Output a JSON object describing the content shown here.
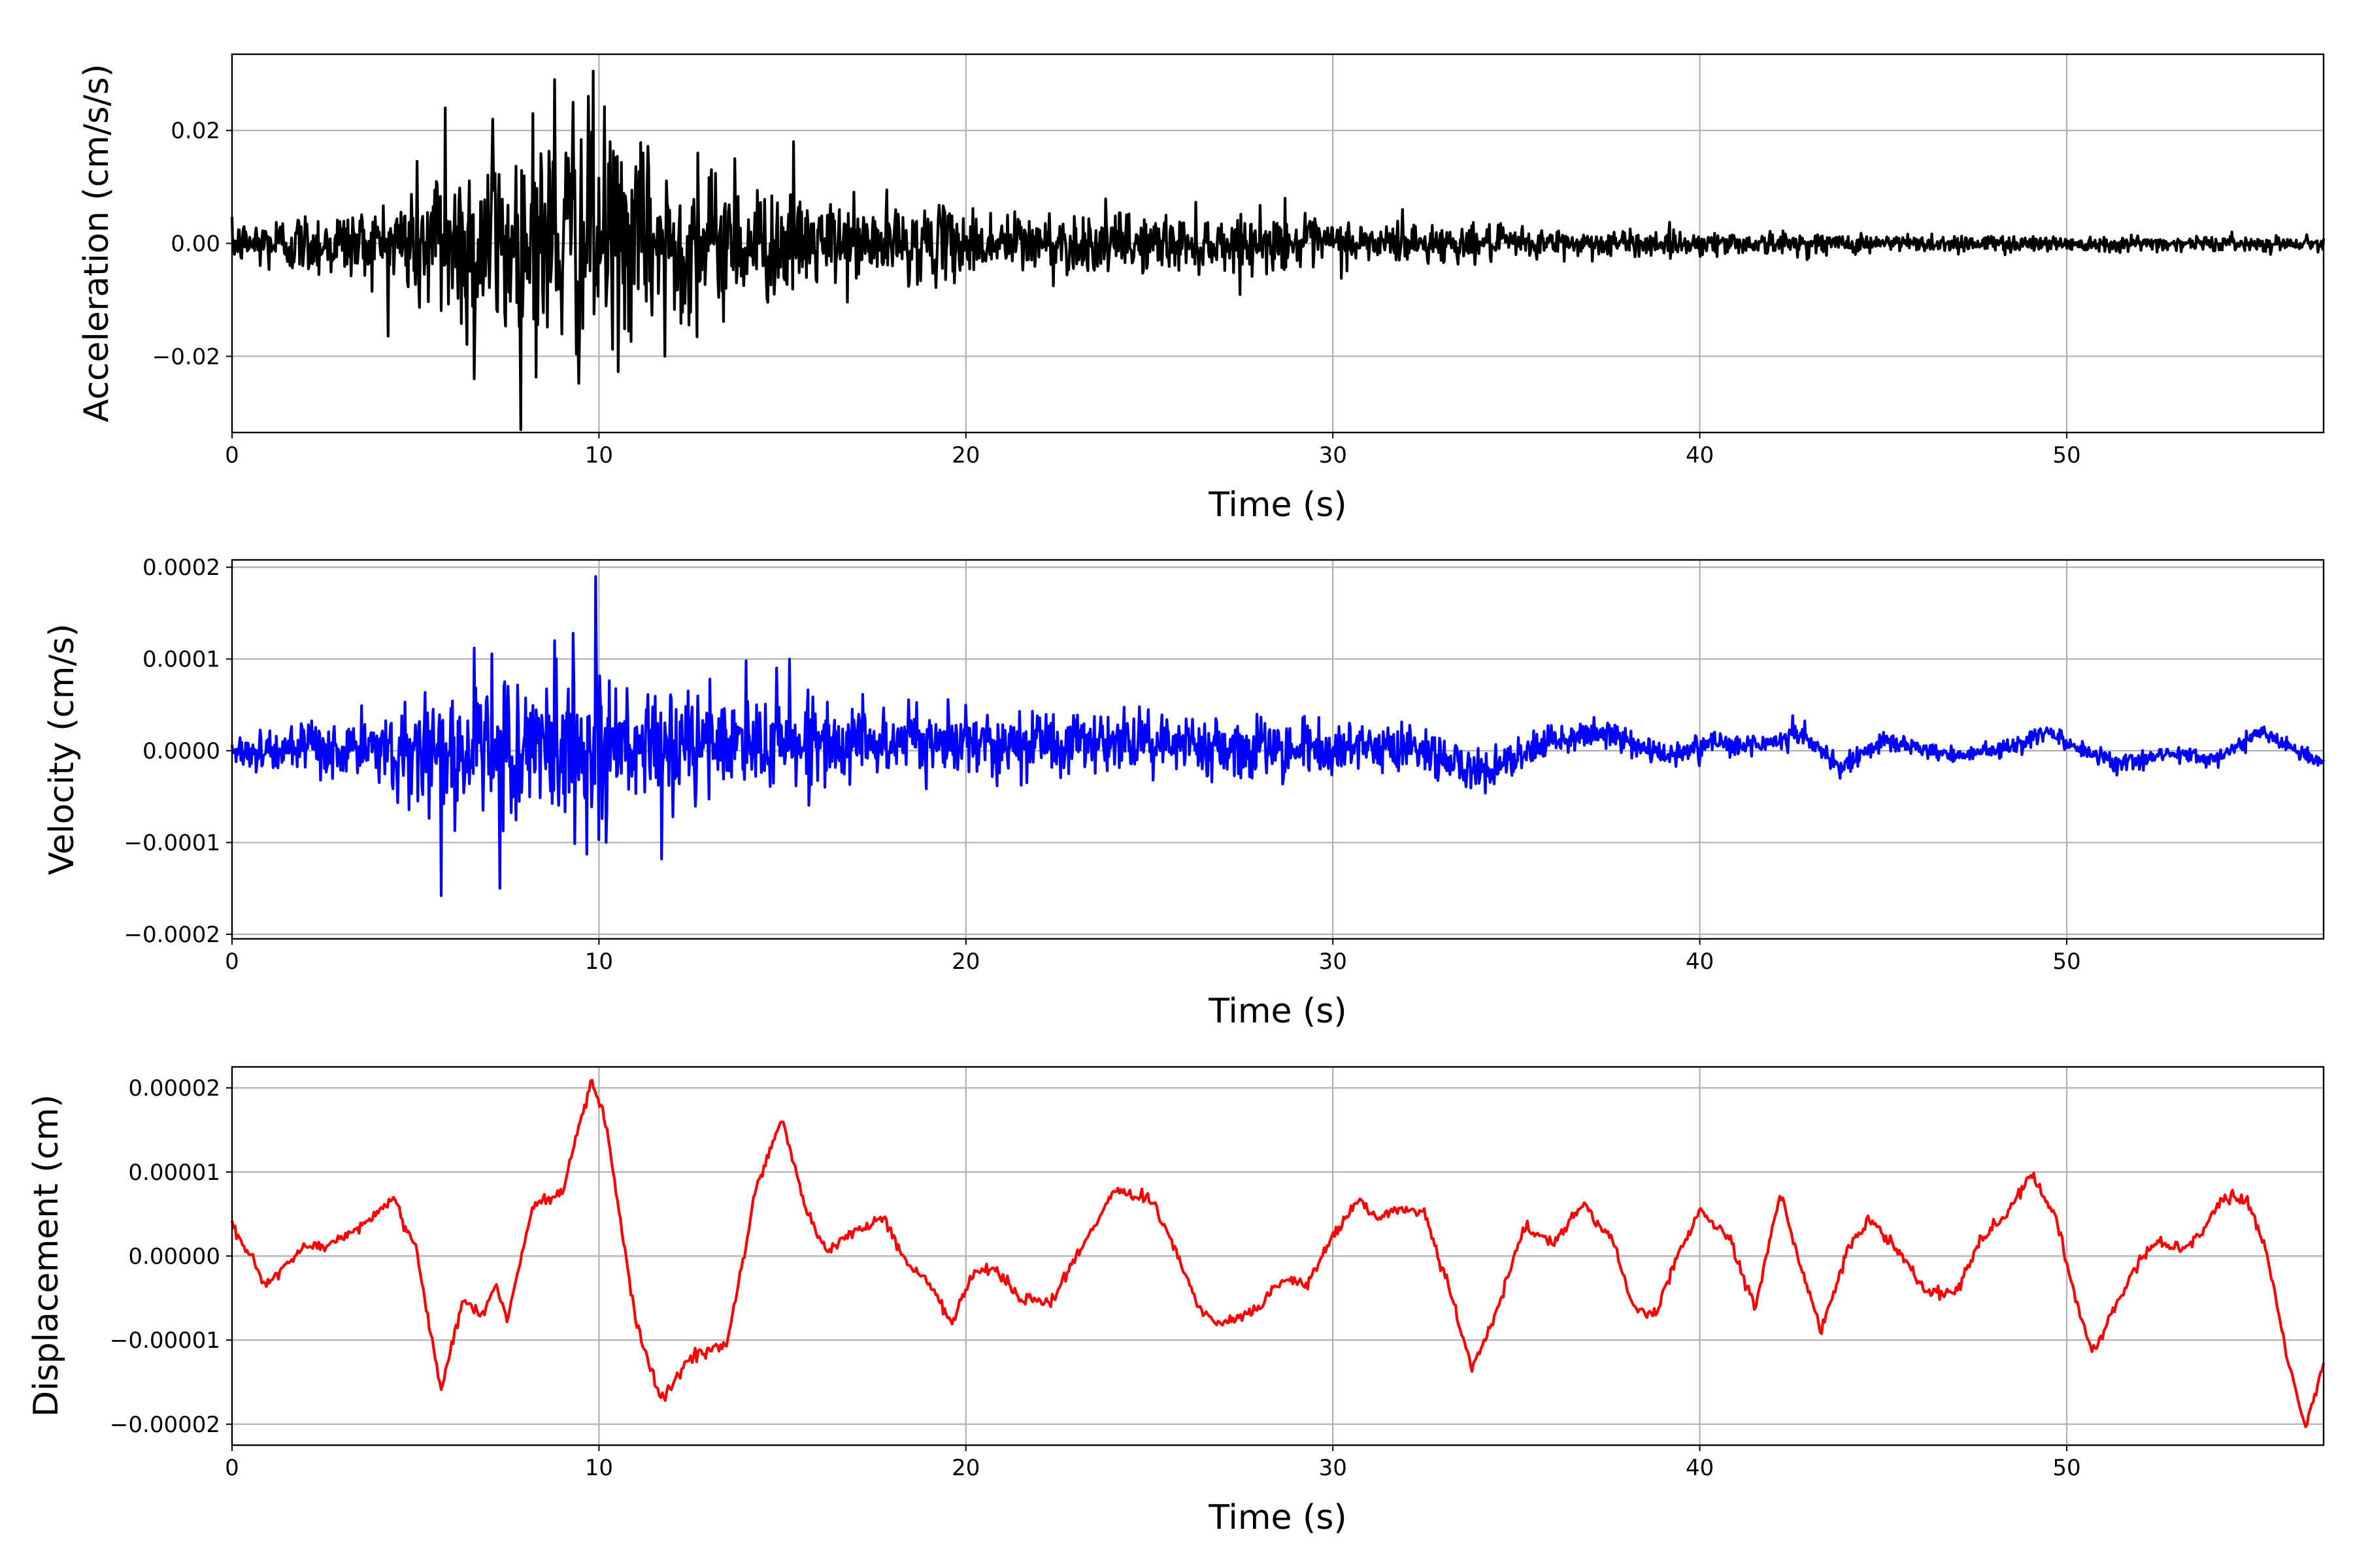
{
  "chart_data": [
    {
      "type": "line",
      "xlabel": "Time (s)",
      "ylabel": "Acceleration (cm/s/s)",
      "xlim": [
        0,
        57
      ],
      "ylim": [
        -0.0335,
        0.0335
      ],
      "xticks": [
        0,
        10,
        20,
        30,
        40,
        50
      ],
      "xtick_labels": [
        "0",
        "10",
        "20",
        "30",
        "40",
        "50"
      ],
      "yticks": [
        -0.02,
        0.0,
        0.02
      ],
      "ytick_labels": [
        "−0.02",
        "0.00",
        "0.02"
      ],
      "grid": true,
      "color": "#000000",
      "signal": "random",
      "envelope": {
        "x": [
          0,
          1,
          4,
          5.5,
          6.5,
          8,
          9,
          10,
          11,
          12.5,
          14,
          16,
          18,
          20,
          25,
          28,
          30,
          32,
          34,
          36,
          40,
          45,
          50,
          57
        ],
        "y": [
          0.004,
          0.006,
          0.008,
          0.018,
          0.02,
          0.022,
          0.025,
          0.026,
          0.018,
          0.016,
          0.013,
          0.009,
          0.008,
          0.007,
          0.006,
          0.0055,
          0.005,
          0.0042,
          0.0036,
          0.003,
          0.0025,
          0.002,
          0.0017,
          0.0014
        ]
      },
      "peaks": {
        "x": [
          5.8,
          6.6,
          7.1,
          8.2,
          8.8,
          9.3,
          9.85,
          10.3,
          11.2,
          11.8,
          12.7,
          13.7,
          15.3,
          28.7,
          31.9
        ],
        "y": [
          0.024,
          -0.024,
          0.022,
          0.023,
          0.029,
          0.025,
          0.0305,
          0.018,
          0.016,
          -0.02,
          0.016,
          0.015,
          0.018,
          0.008,
          0.006
        ]
      }
    },
    {
      "type": "line",
      "xlabel": "Time (s)",
      "ylabel": "Velocity (cm/s)",
      "xlim": [
        0,
        57
      ],
      "ylim": [
        -0.000205,
        0.000208
      ],
      "xticks": [
        0,
        10,
        20,
        30,
        40,
        50
      ],
      "xtick_labels": [
        "0",
        "10",
        "20",
        "30",
        "40",
        "50"
      ],
      "yticks": [
        -0.0002,
        -0.0001,
        0.0,
        0.0001,
        0.0002
      ],
      "ytick_labels": [
        "−0.0002",
        "−0.0001",
        "0.0000",
        "0.0001",
        "0.0002"
      ],
      "grid": true,
      "color": "#0000ff",
      "signal": "random",
      "trend": {
        "x": [
          0,
          5,
          10,
          15,
          20,
          25,
          30,
          32,
          34.2,
          36,
          37.5,
          39,
          40.5,
          41.5,
          42.8,
          43.8,
          45,
          47,
          48.5,
          49.5,
          50.5,
          51.5,
          53,
          54,
          55.3,
          57
        ],
        "y": [
          0,
          0,
          0,
          1e-05,
          1e-05,
          1e-05,
          0,
          5e-06,
          -2.5e-05,
          1e-05,
          2e-05,
          -5e-06,
          1e-05,
          5e-06,
          2e-05,
          -2e-05,
          1e-05,
          -5e-06,
          5e-06,
          2e-05,
          0,
          -1.5e-05,
          0,
          -1e-05,
          2e-05,
          -1.5e-05
        ]
      },
      "envelope": {
        "x": [
          0,
          4,
          5.5,
          7,
          8.5,
          10,
          11,
          12.5,
          14,
          15.5,
          18,
          20,
          25,
          30,
          33,
          36,
          40,
          45,
          50,
          57
        ],
        "y": [
          2.5e-05,
          4e-05,
          9e-05,
          8e-05,
          0.0001,
          0.00011,
          7e-05,
          7e-05,
          6e-05,
          5e-05,
          4.5e-05,
          4e-05,
          4e-05,
          3.5e-05,
          3e-05,
          2e-05,
          1.5e-05,
          1.2e-05,
          1e-05,
          1e-05
        ]
      },
      "peaks": {
        "x": [
          5.7,
          6.6,
          7.3,
          8.8,
          9.3,
          9.9,
          10.2,
          11.7,
          14.0,
          15.2
        ],
        "y": [
          -0.000158,
          0.000112,
          -0.00015,
          0.00012,
          0.000128,
          0.00019,
          -0.0001,
          -0.000118,
          9.8e-05,
          0.0001
        ]
      }
    },
    {
      "type": "line",
      "xlabel": "Time (s)",
      "ylabel": "Displacement (cm)",
      "xlim": [
        0,
        57
      ],
      "ylim": [
        -2.25e-05,
        2.25e-05
      ],
      "xticks": [
        0,
        10,
        20,
        30,
        40,
        50
      ],
      "xtick_labels": [
        "0",
        "10",
        "20",
        "30",
        "40",
        "50"
      ],
      "yticks": [
        -2e-05,
        -1e-05,
        0.0,
        1e-05,
        2e-05
      ],
      "ytick_labels": [
        "−0.00002",
        "−0.00001",
        "0.00000",
        "0.00001",
        "0.00002"
      ],
      "grid": true,
      "color": "#ff0000",
      "signal": "smooth",
      "x": [
        0,
        0.9,
        2.0,
        2.7,
        3.5,
        4.4,
        5.0,
        5.7,
        6.3,
        6.8,
        7.2,
        7.5,
        8.2,
        9.0,
        9.8,
        10.2,
        11.0,
        11.7,
        12.5,
        13.5,
        14.3,
        15.0,
        15.6,
        16.2,
        17.0,
        17.8,
        18.3,
        19.0,
        19.6,
        20.2,
        20.8,
        21.5,
        22.3,
        23.3,
        24.0,
        25.0,
        25.6,
        26.3,
        26.8,
        27.3,
        28.0,
        28.6,
        29.3,
        29.9,
        30.7,
        31.2,
        31.8,
        32.5,
        33.1,
        33.8,
        34.6,
        35.2,
        36.0,
        36.8,
        37.6,
        38.2,
        38.8,
        39.3,
        40.0,
        40.8,
        41.5,
        42.2,
        42.8,
        43.3,
        44.0,
        44.6,
        45.4,
        46.2,
        47.0,
        47.6,
        48.3,
        49.0,
        49.7,
        50.2,
        50.7,
        51.2,
        51.8,
        52.5,
        53.1,
        53.7,
        54.3,
        54.9,
        55.5,
        56.0,
        56.5,
        57.0
      ],
      "y": [
        3.7e-06,
        -3.5e-06,
        1e-06,
        1.4e-06,
        3.5e-06,
        6.7e-06,
        1e-06,
        -1.6e-05,
        -5e-06,
        -7e-06,
        -3.5e-06,
        -7.5e-06,
        6e-06,
        7.5e-06,
        2.1e-05,
        1.55e-05,
        -8e-06,
        -1.72e-05,
        -1.2e-05,
        -1.05e-05,
        8.5e-06,
        1.65e-05,
        6e-06,
        5e-07,
        3e-06,
        4.5e-06,
        -5e-07,
        -3e-06,
        -8e-06,
        -2e-06,
        -1.5e-06,
        -5e-06,
        -5.5e-06,
        2e-06,
        7.8e-06,
        6.8e-06,
        2e-06,
        -6e-06,
        -8e-06,
        -7.5e-06,
        -6e-06,
        -2.5e-06,
        -3.5e-06,
        1.5e-06,
        6.8e-06,
        4.5e-06,
        5.8e-06,
        5e-06,
        -3e-06,
        -1.35e-05,
        -5e-06,
        3.5e-06,
        1.5e-06,
        6e-06,
        2e-06,
        -6e-06,
        -7e-06,
        -1e-06,
        5.5e-06,
        2e-06,
        -6e-06,
        7.5e-06,
        -2e-06,
        -9e-06,
        5e-07,
        4.5e-06,
        5e-07,
        -4.5e-06,
        -4e-06,
        1.5e-06,
        4.5e-06,
        1e-05,
        4.5e-06,
        -4.5e-06,
        -1.15e-05,
        -7e-06,
        -2e-06,
        2e-06,
        5e-07,
        3e-06,
        7e-06,
        7e-06,
        -5e-07,
        -1.2e-05,
        -2.05e-05,
        -1.25e-05
      ]
    }
  ]
}
